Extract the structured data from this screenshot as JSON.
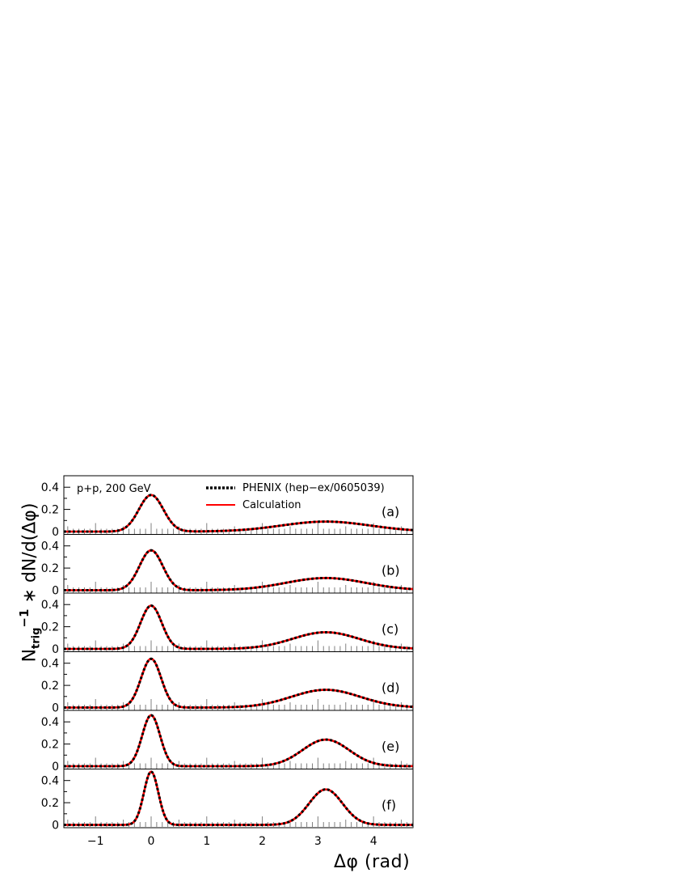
{
  "y_axis_label": {
    "base": "N",
    "sub": "trig",
    "sup": "−1",
    "rest": " ∗ dN/d(Δφ)"
  },
  "x_axis_label": "Δφ (rad)",
  "system_label": "p+p, 200 GeV",
  "legend": [
    {
      "label": "PHENIX (hep−ex/0605039)",
      "style": "dotted",
      "color": "#000000"
    },
    {
      "label": "Calculation",
      "style": "solid",
      "color": "#ff0000"
    }
  ],
  "colors": {
    "data": "#000000",
    "calc": "#ff0000",
    "axis": "#000000",
    "tick": "#808080"
  },
  "chart_data": {
    "type": "line",
    "xlabel": "Δφ (rad)",
    "ylabel": "N_trig^−1 ∗ dN/d(Δφ)",
    "xlim": [
      -1.57,
      4.71
    ],
    "ylim": [
      0,
      0.5
    ],
    "x_ticks": [
      -1,
      0,
      1,
      2,
      3,
      4
    ],
    "y_ticks": [
      0,
      0.2,
      0.4
    ],
    "y_tick_labels": [
      "0",
      "0.2",
      "0.4"
    ],
    "grid": false,
    "legend_position": "top-right",
    "series_names": [
      "PHENIX (hep−ex/0605039)",
      "Calculation"
    ],
    "curve_model": "near-side gaussian at 0 plus away-side gaussian at π",
    "panels": [
      {
        "label": "(a)",
        "near_peak": 0.33,
        "near_width": 0.22,
        "away_peak": 0.09,
        "away_width": 0.8
      },
      {
        "label": "(b)",
        "near_peak": 0.36,
        "near_width": 0.21,
        "away_peak": 0.11,
        "away_width": 0.72
      },
      {
        "label": "(c)",
        "near_peak": 0.39,
        "near_width": 0.19,
        "away_peak": 0.15,
        "away_width": 0.6
      },
      {
        "label": "(d)",
        "near_peak": 0.44,
        "near_width": 0.18,
        "away_peak": 0.16,
        "away_width": 0.62
      },
      {
        "label": "(e)",
        "near_peak": 0.46,
        "near_width": 0.16,
        "away_peak": 0.24,
        "away_width": 0.42
      },
      {
        "label": "(f)",
        "near_peak": 0.48,
        "near_width": 0.13,
        "away_peak": 0.32,
        "away_width": 0.3
      }
    ]
  }
}
